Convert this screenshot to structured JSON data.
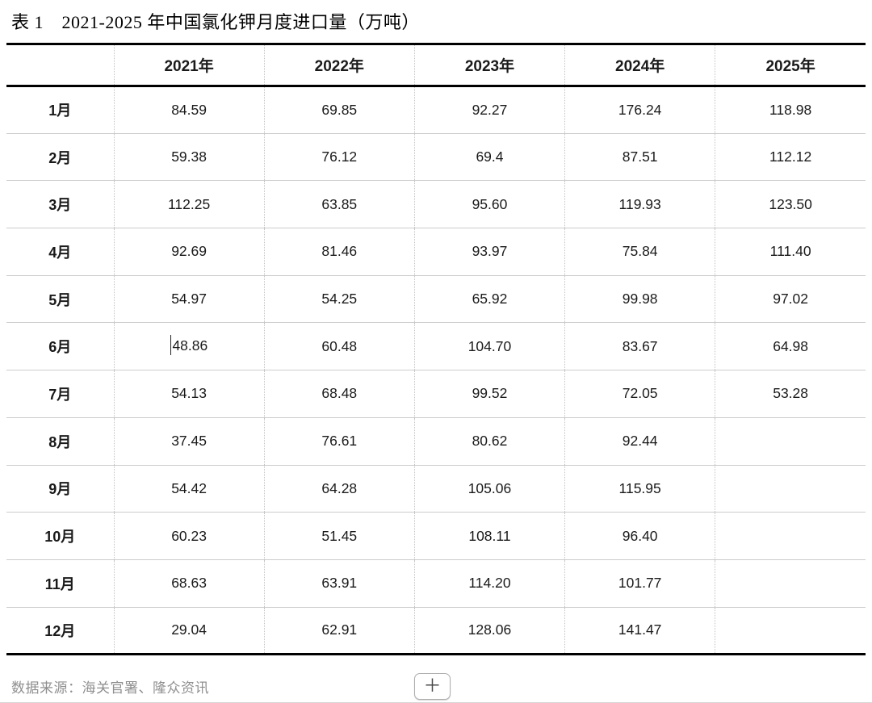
{
  "title": "表 1　2021-2025 年中国氯化钾月度进口量（万吨）",
  "table": {
    "columns": [
      "",
      "2021年",
      "2022年",
      "2023年",
      "2024年",
      "2025年"
    ],
    "rows": [
      {
        "month": "1月",
        "values": [
          "84.59",
          "69.85",
          "92.27",
          "176.24",
          "118.98"
        ]
      },
      {
        "month": "2月",
        "values": [
          "59.38",
          "76.12",
          "69.4",
          "87.51",
          "112.12"
        ]
      },
      {
        "month": "3月",
        "values": [
          "112.25",
          "63.85",
          "95.60",
          "119.93",
          "123.50"
        ]
      },
      {
        "month": "4月",
        "values": [
          "92.69",
          "81.46",
          "93.97",
          "75.84",
          "111.40"
        ]
      },
      {
        "month": "5月",
        "values": [
          "54.97",
          "54.25",
          "65.92",
          "99.98",
          "97.02"
        ]
      },
      {
        "month": "6月",
        "values": [
          "48.86",
          "60.48",
          "104.70",
          "83.67",
          "64.98"
        ]
      },
      {
        "month": "7月",
        "values": [
          "54.13",
          "68.48",
          "99.52",
          "72.05",
          "53.28"
        ]
      },
      {
        "month": "8月",
        "values": [
          "37.45",
          "76.61",
          "80.62",
          "92.44",
          ""
        ]
      },
      {
        "month": "9月",
        "values": [
          "54.42",
          "64.28",
          "105.06",
          "115.95",
          ""
        ]
      },
      {
        "month": "10月",
        "values": [
          "60.23",
          "51.45",
          "108.11",
          "96.40",
          ""
        ]
      },
      {
        "month": "11月",
        "values": [
          "68.63",
          "63.91",
          "114.20",
          "101.77",
          ""
        ]
      },
      {
        "month": "12月",
        "values": [
          "29.04",
          "62.91",
          "128.06",
          "141.47",
          ""
        ]
      }
    ]
  },
  "caret": {
    "row": 5,
    "col": 0
  },
  "footer": {
    "source": "数据来源：海关官署、隆众资讯",
    "add_button_label": "＋"
  },
  "colors": {
    "border_heavy": "#000000",
    "row_separator": "#cccccc",
    "column_separator": "#c4c4c4",
    "source_text": "#8f8f8f",
    "button_border": "#adadad"
  },
  "chart_data": {
    "type": "table",
    "title": "表 1　2021-2025 年中国氯化钾月度进口量（万吨）",
    "unit": "万吨",
    "categories": [
      "1月",
      "2月",
      "3月",
      "4月",
      "5月",
      "6月",
      "7月",
      "8月",
      "9月",
      "10月",
      "11月",
      "12月"
    ],
    "series": [
      {
        "name": "2021年",
        "values": [
          84.59,
          59.38,
          112.25,
          92.69,
          54.97,
          48.86,
          54.13,
          37.45,
          54.42,
          60.23,
          68.63,
          29.04
        ]
      },
      {
        "name": "2022年",
        "values": [
          69.85,
          76.12,
          63.85,
          81.46,
          54.25,
          60.48,
          68.48,
          76.61,
          64.28,
          51.45,
          63.91,
          62.91
        ]
      },
      {
        "name": "2023年",
        "values": [
          92.27,
          69.4,
          95.6,
          93.97,
          65.92,
          104.7,
          99.52,
          80.62,
          105.06,
          108.11,
          114.2,
          128.06
        ]
      },
      {
        "name": "2024年",
        "values": [
          176.24,
          87.51,
          119.93,
          75.84,
          99.98,
          83.67,
          72.05,
          92.44,
          115.95,
          96.4,
          101.77,
          141.47
        ]
      },
      {
        "name": "2025年",
        "values": [
          118.98,
          112.12,
          123.5,
          111.4,
          97.02,
          64.98,
          53.28,
          null,
          null,
          null,
          null,
          null
        ]
      }
    ],
    "source": "数据来源：海关官署、隆众资讯"
  }
}
